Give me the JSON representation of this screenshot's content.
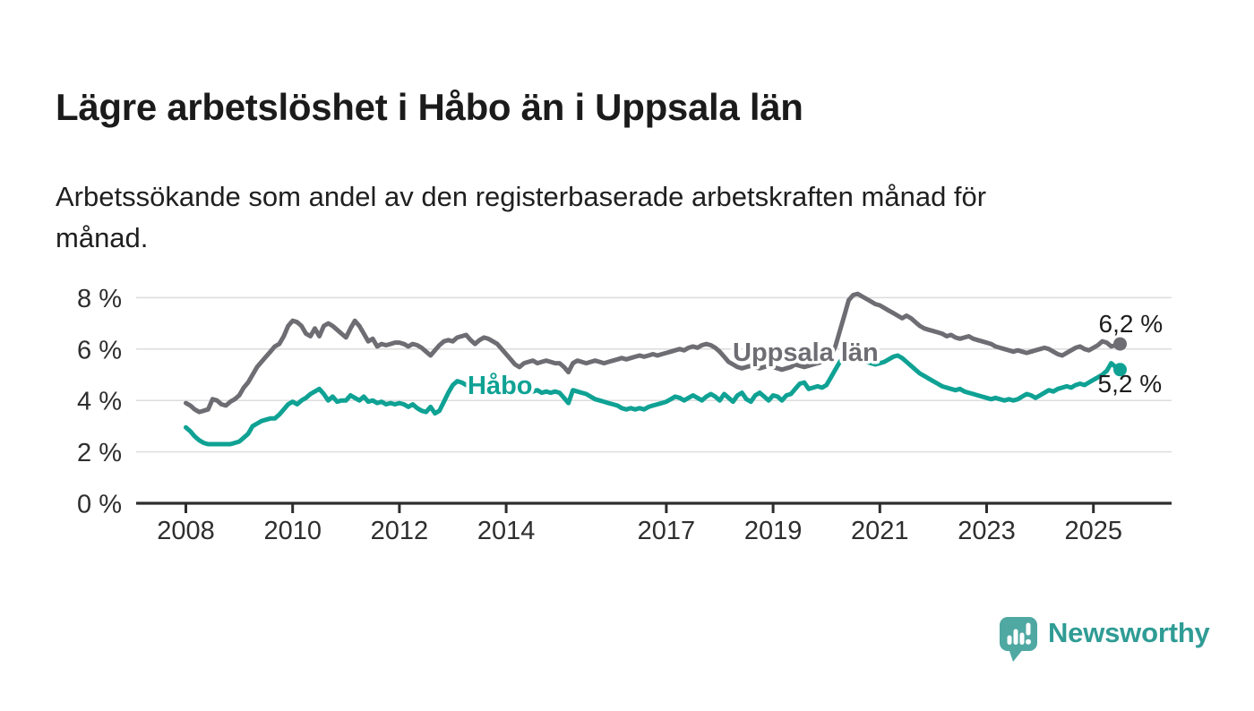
{
  "header": {
    "title": "Lägre arbetslöshet i Håbo än i Uppsala län",
    "subtitle": "Arbetssökande som andel av den registerbaserade arbetskraften månad för\nmånad."
  },
  "chart_data": {
    "type": "line",
    "title": "Lägre arbetslöshet i Håbo än i Uppsala län",
    "subtitle": "Arbetssökande som andel av den registerbaserade arbetskraften månad för månad.",
    "x_start_year": 2008,
    "points_per_year": 12,
    "x_ticks": [
      2008,
      2010,
      2012,
      2014,
      2017,
      2019,
      2021,
      2023,
      2025
    ],
    "y_ticks": [
      0,
      2,
      4,
      6,
      8
    ],
    "y_tick_format": "{v} %",
    "ylim": [
      0,
      8.6
    ],
    "grid": "horizontal",
    "legend_position": "inline-labels",
    "colors": {
      "grid": "#dcdcdc",
      "axis": "#2d2d2d",
      "tick_text": "#2e2e2e",
      "value_label": "#1d1d1d"
    },
    "series": [
      {
        "name": "Uppsala län",
        "color": "#6d6d73",
        "end_label": "6,2 %",
        "end_value": 6.2,
        "values": [
          3.9,
          3.8,
          3.65,
          3.55,
          3.6,
          3.65,
          4.05,
          4.0,
          3.85,
          3.8,
          3.95,
          4.05,
          4.2,
          4.5,
          4.7,
          5.0,
          5.3,
          5.5,
          5.7,
          5.9,
          6.1,
          6.2,
          6.5,
          6.9,
          7.1,
          7.05,
          6.9,
          6.6,
          6.5,
          6.8,
          6.5,
          6.9,
          7.0,
          6.9,
          6.75,
          6.6,
          6.45,
          6.8,
          7.1,
          6.9,
          6.6,
          6.3,
          6.4,
          6.1,
          6.2,
          6.15,
          6.2,
          6.25,
          6.25,
          6.2,
          6.1,
          6.2,
          6.15,
          6.05,
          5.9,
          5.75,
          5.95,
          6.15,
          6.3,
          6.35,
          6.3,
          6.45,
          6.5,
          6.55,
          6.35,
          6.2,
          6.35,
          6.45,
          6.4,
          6.3,
          6.2,
          6.0,
          5.8,
          5.6,
          5.4,
          5.3,
          5.45,
          5.5,
          5.55,
          5.45,
          5.5,
          5.55,
          5.5,
          5.45,
          5.45,
          5.3,
          5.1,
          5.45,
          5.55,
          5.5,
          5.45,
          5.5,
          5.55,
          5.5,
          5.45,
          5.5,
          5.55,
          5.6,
          5.65,
          5.6,
          5.65,
          5.7,
          5.75,
          5.7,
          5.75,
          5.8,
          5.75,
          5.8,
          5.85,
          5.9,
          5.95,
          6.0,
          5.95,
          6.05,
          6.1,
          6.05,
          6.15,
          6.2,
          6.15,
          6.05,
          5.9,
          5.7,
          5.5,
          5.4,
          5.3,
          5.25,
          5.3,
          5.35,
          5.3,
          5.25,
          5.3,
          5.35,
          5.3,
          5.25,
          5.2,
          5.25,
          5.3,
          5.4,
          5.35,
          5.3,
          5.35,
          5.4,
          5.45,
          5.5,
          5.6,
          5.75,
          6.1,
          6.7,
          7.3,
          7.9,
          8.1,
          8.15,
          8.05,
          7.95,
          7.85,
          7.75,
          7.7,
          7.6,
          7.5,
          7.4,
          7.3,
          7.2,
          7.3,
          7.2,
          7.05,
          6.9,
          6.8,
          6.75,
          6.7,
          6.65,
          6.6,
          6.5,
          6.55,
          6.45,
          6.4,
          6.45,
          6.5,
          6.4,
          6.35,
          6.3,
          6.25,
          6.2,
          6.1,
          6.05,
          6.0,
          5.95,
          5.9,
          5.95,
          5.9,
          5.85,
          5.9,
          5.95,
          6.0,
          6.05,
          6.0,
          5.9,
          5.8,
          5.75,
          5.85,
          5.95,
          6.05,
          6.1,
          6.0,
          5.95,
          6.05,
          6.15,
          6.3,
          6.25,
          6.1,
          6.15,
          6.2
        ]
      },
      {
        "name": "Håbo",
        "color": "#0fa294",
        "end_label": "5,2 %",
        "end_value": 5.2,
        "values": [
          2.95,
          2.8,
          2.6,
          2.45,
          2.35,
          2.3,
          2.3,
          2.3,
          2.3,
          2.3,
          2.3,
          2.35,
          2.4,
          2.55,
          2.7,
          3.0,
          3.1,
          3.2,
          3.25,
          3.3,
          3.3,
          3.45,
          3.65,
          3.85,
          3.95,
          3.85,
          4.0,
          4.1,
          4.25,
          4.35,
          4.45,
          4.25,
          4.0,
          4.15,
          3.95,
          4.0,
          4.0,
          4.2,
          4.1,
          4.0,
          4.15,
          3.95,
          4.0,
          3.9,
          3.95,
          3.85,
          3.9,
          3.85,
          3.9,
          3.85,
          3.75,
          3.85,
          3.7,
          3.6,
          3.55,
          3.75,
          3.5,
          3.6,
          3.95,
          4.3,
          4.6,
          4.75,
          4.7,
          4.6,
          4.55,
          4.5,
          4.55,
          4.5,
          4.45,
          4.5,
          4.45,
          4.4,
          4.45,
          4.4,
          4.35,
          4.3,
          4.35,
          4.3,
          4.35,
          4.4,
          4.3,
          4.35,
          4.3,
          4.35,
          4.3,
          4.1,
          3.9,
          4.4,
          4.35,
          4.3,
          4.25,
          4.15,
          4.05,
          4.0,
          3.95,
          3.9,
          3.85,
          3.8,
          3.7,
          3.65,
          3.7,
          3.65,
          3.7,
          3.65,
          3.75,
          3.8,
          3.85,
          3.9,
          3.95,
          4.05,
          4.15,
          4.1,
          4.0,
          4.1,
          4.2,
          4.1,
          4.0,
          4.15,
          4.25,
          4.15,
          4.0,
          4.25,
          4.1,
          3.95,
          4.2,
          4.3,
          4.05,
          3.95,
          4.2,
          4.3,
          4.15,
          4.0,
          4.2,
          4.15,
          4.0,
          4.2,
          4.25,
          4.45,
          4.65,
          4.7,
          4.45,
          4.5,
          4.55,
          4.5,
          4.6,
          4.9,
          5.2,
          5.5,
          5.7,
          5.75,
          5.7,
          5.65,
          5.55,
          5.5,
          5.45,
          5.4,
          5.45,
          5.5,
          5.6,
          5.7,
          5.75,
          5.65,
          5.5,
          5.35,
          5.2,
          5.05,
          4.95,
          4.85,
          4.75,
          4.65,
          4.55,
          4.5,
          4.45,
          4.4,
          4.45,
          4.35,
          4.3,
          4.25,
          4.2,
          4.15,
          4.1,
          4.05,
          4.1,
          4.05,
          4.0,
          4.05,
          4.0,
          4.05,
          4.15,
          4.25,
          4.2,
          4.1,
          4.2,
          4.3,
          4.4,
          4.35,
          4.45,
          4.5,
          4.55,
          4.5,
          4.6,
          4.65,
          4.6,
          4.7,
          4.8,
          4.9,
          5.0,
          5.15,
          5.45,
          5.3,
          5.2
        ]
      }
    ]
  },
  "footer": {
    "brand": "Newsworthy",
    "logo_icon": "newsworthy-speech-bubble-bar-chart",
    "brand_color": "#2f9c95",
    "logo_fill": "#4fa8a2"
  }
}
